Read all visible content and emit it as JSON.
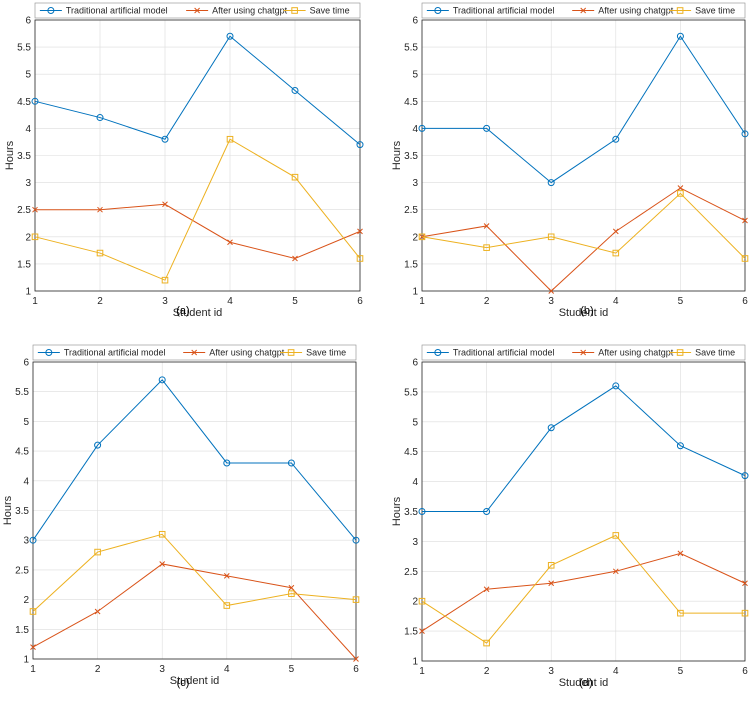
{
  "colors": {
    "traditional": "#0072BD",
    "chatgpt": "#D95319",
    "save": "#EDB120",
    "grid": "#dcdcdc",
    "axis": "#262626"
  },
  "chart_data": [
    {
      "type": "line",
      "caption": "(a)",
      "xlabel": "Student id",
      "ylabel": "Hours",
      "x": [
        1,
        2,
        3,
        4,
        5,
        6
      ],
      "xlim": [
        1,
        6
      ],
      "ylim": [
        1,
        6
      ],
      "yticks": [
        "1",
        "1.5",
        "2",
        "2.5",
        "3",
        "3.5",
        "4",
        "4.5",
        "5",
        "5.5",
        "6"
      ],
      "xticks": [
        "1",
        "2",
        "3",
        "4",
        "5",
        "6"
      ],
      "grid": true,
      "legend_position": "top",
      "series": [
        {
          "name": "Traditional artificial model",
          "marker": "circle",
          "color_key": "traditional",
          "values": [
            4.5,
            4.2,
            3.8,
            5.7,
            4.7,
            3.7
          ]
        },
        {
          "name": "After using chatgpt",
          "marker": "x",
          "color_key": "chatgpt",
          "values": [
            2.5,
            2.5,
            2.6,
            1.9,
            1.6,
            2.1
          ]
        },
        {
          "name": "Save time",
          "marker": "square",
          "color_key": "save",
          "values": [
            2.0,
            1.7,
            1.2,
            3.8,
            3.1,
            1.6
          ]
        }
      ]
    },
    {
      "type": "line",
      "caption": "(b)",
      "xlabel": "Student id",
      "ylabel": "Hours",
      "x": [
        1,
        2,
        3,
        4,
        5,
        6
      ],
      "xlim": [
        1,
        6
      ],
      "ylim": [
        1,
        6
      ],
      "yticks": [
        "1",
        "1.5",
        "2",
        "2.5",
        "3",
        "3.5",
        "4",
        "4.5",
        "5",
        "5.5",
        "6"
      ],
      "xticks": [
        "1",
        "2",
        "3",
        "4",
        "5",
        "6"
      ],
      "grid": true,
      "legend_position": "top",
      "series": [
        {
          "name": "Traditional artificial model",
          "marker": "circle",
          "color_key": "traditional",
          "values": [
            4.0,
            4.0,
            3.0,
            3.8,
            5.7,
            3.9
          ]
        },
        {
          "name": "After using chatgpt",
          "marker": "x",
          "color_key": "chatgpt",
          "values": [
            2.0,
            2.2,
            1.0,
            2.1,
            2.9,
            2.3
          ]
        },
        {
          "name": "Save time",
          "marker": "square",
          "color_key": "save",
          "values": [
            2.0,
            1.8,
            2.0,
            1.7,
            2.8,
            1.6
          ]
        }
      ]
    },
    {
      "type": "line",
      "caption": "(c)",
      "xlabel": "Student id",
      "ylabel": "Hours",
      "x": [
        1,
        2,
        3,
        4,
        5,
        6
      ],
      "xlim": [
        1,
        6
      ],
      "ylim": [
        1,
        6
      ],
      "yticks": [
        "1",
        "1.5",
        "2",
        "2.5",
        "3",
        "3.5",
        "4",
        "4.5",
        "5",
        "5.5",
        "6"
      ],
      "xticks": [
        "1",
        "2",
        "3",
        "4",
        "5",
        "6"
      ],
      "grid": true,
      "legend_position": "top",
      "series": [
        {
          "name": "Traditional artificial model",
          "marker": "circle",
          "color_key": "traditional",
          "values": [
            3.0,
            4.6,
            5.7,
            4.3,
            4.3,
            3.0
          ]
        },
        {
          "name": "After using chatgpt",
          "marker": "x",
          "color_key": "chatgpt",
          "values": [
            1.2,
            1.8,
            2.6,
            2.4,
            2.2,
            1.0
          ]
        },
        {
          "name": "Save time",
          "marker": "square",
          "color_key": "save",
          "values": [
            1.8,
            2.8,
            3.1,
            1.9,
            2.1,
            2.0
          ]
        }
      ]
    },
    {
      "type": "line",
      "caption": "(d)",
      "xlabel": "Student id",
      "ylabel": "Hours",
      "x": [
        1,
        2,
        3,
        4,
        5,
        6
      ],
      "xlim": [
        1,
        6
      ],
      "ylim": [
        1,
        6
      ],
      "yticks": [
        "1",
        "1.5",
        "2",
        "2.5",
        "3",
        "3.5",
        "4",
        "4.5",
        "5",
        "5.5",
        "6"
      ],
      "xticks": [
        "1",
        "2",
        "3",
        "4",
        "5",
        "6"
      ],
      "grid": true,
      "legend_position": "top",
      "series": [
        {
          "name": "Traditional artificial model",
          "marker": "circle",
          "color_key": "traditional",
          "values": [
            3.5,
            3.5,
            4.9,
            5.6,
            4.6,
            4.1
          ]
        },
        {
          "name": "After using chatgpt",
          "marker": "x",
          "color_key": "chatgpt",
          "values": [
            1.5,
            2.2,
            2.3,
            2.5,
            2.8,
            2.3
          ]
        },
        {
          "name": "Save time",
          "marker": "square",
          "color_key": "save",
          "values": [
            2.0,
            1.3,
            2.6,
            3.1,
            1.8,
            1.8
          ]
        }
      ]
    }
  ]
}
